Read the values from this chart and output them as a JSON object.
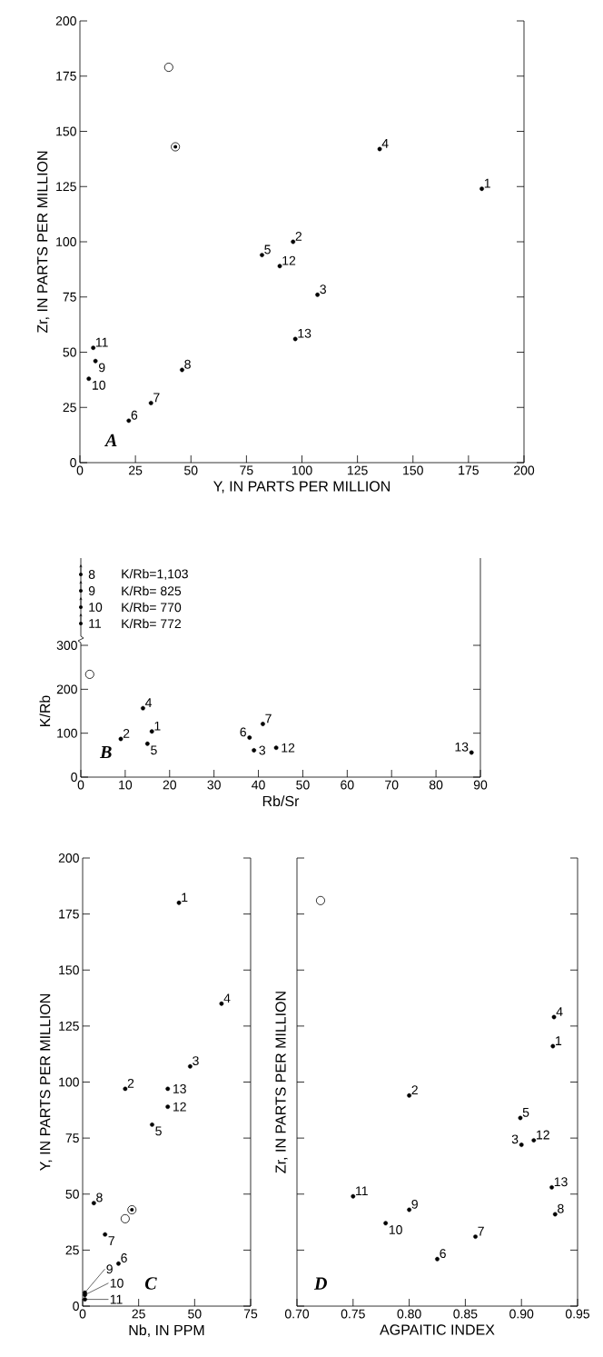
{
  "chart_data": [
    {
      "type": "scatter",
      "xlabel": "Y, IN PARTS PER MILLION",
      "ylabel": "Zr, IN PARTS PER MILLION",
      "xlim": [
        0,
        200
      ],
      "ylim": [
        0,
        200
      ],
      "xticks": [
        0,
        25,
        50,
        75,
        100,
        125,
        150,
        175,
        200
      ],
      "yticks": [
        0,
        25,
        50,
        75,
        100,
        125,
        150,
        175,
        200
      ],
      "series": [
        {
          "color": "#000000",
          "marker": "circle",
          "x": [
            181,
            96,
            107,
            135,
            82,
            22,
            32,
            46,
            7,
            4,
            6,
            90,
            97
          ],
          "values": [
            124,
            100,
            76,
            142,
            94,
            19,
            27,
            42,
            46,
            38,
            52,
            89,
            56
          ]
        },
        {
          "color": "#ffffff",
          "marker": "circle",
          "x": [
            40
          ],
          "values": [
            179
          ]
        },
        {
          "color": "#000000",
          "marker": "circle",
          "x": [
            43
          ],
          "values": [
            143
          ]
        }
      ],
      "annotations": [
        "A",
        {
          "text": "1",
          "x": 181,
          "y": 124
        },
        {
          "text": "2",
          "x": 96,
          "y": 100
        },
        {
          "text": "3",
          "x": 107,
          "y": 76
        },
        {
          "text": "4",
          "x": 135,
          "y": 142
        },
        {
          "text": "5",
          "x": 82,
          "y": 94
        },
        {
          "text": "6",
          "x": 22,
          "y": 19
        },
        {
          "text": "7",
          "x": 32,
          "y": 27
        },
        {
          "text": "8",
          "x": 46,
          "y": 42
        },
        {
          "text": "9",
          "x": 7,
          "y": 46
        },
        {
          "text": "10",
          "x": 4,
          "y": 38
        },
        {
          "text": "11",
          "x": 6,
          "y": 52
        },
        {
          "text": "12",
          "x": 90,
          "y": 89
        },
        {
          "text": "13",
          "x": 97,
          "y": 56
        }
      ]
    },
    {
      "type": "scatter",
      "xlabel": "Rb/Sr",
      "ylabel": "K/Rb",
      "xlim": [
        0,
        90
      ],
      "ylim": [
        0,
        300
      ],
      "xticks": [
        0,
        10,
        20,
        30,
        40,
        50,
        60,
        70,
        80,
        90
      ],
      "yticks": [
        0,
        100,
        200,
        300
      ],
      "series": [
        {
          "color": "#000000",
          "marker": "circle",
          "x": [
            16,
            9,
            39,
            14,
            15,
            38,
            41,
            44,
            88
          ],
          "values": [
            104,
            87,
            61,
            157,
            76,
            90,
            121,
            67,
            56
          ]
        },
        {
          "color": "#ffffff",
          "marker": "circle",
          "x": [
            2
          ],
          "values": [
            234
          ]
        }
      ],
      "annotations": [
        "B",
        {
          "text": "1",
          "x": 16,
          "y": 104
        },
        {
          "text": "2",
          "x": 9,
          "y": 87
        },
        {
          "text": "3",
          "x": 39,
          "y": 61
        },
        {
          "text": "4",
          "x": 14,
          "y": 157
        },
        {
          "text": "5",
          "x": 15,
          "y": 76
        },
        {
          "text": "6",
          "x": 38,
          "y": 90
        },
        {
          "text": "7",
          "x": 41,
          "y": 121
        },
        {
          "text": "12",
          "x": 44,
          "y": 67
        },
        {
          "text": "13",
          "x": 88,
          "y": 56
        },
        "8",
        "K/Rb=1,103",
        "9",
        "K/Rb= 825",
        "10",
        "K/Rb= 770",
        "11",
        "K/Rb= 772"
      ]
    },
    {
      "type": "scatter",
      "xlabel": "Nb, IN PPM",
      "ylabel": "Y, IN PARTS PER MILLION",
      "xlim": [
        0,
        75
      ],
      "ylim": [
        0,
        200
      ],
      "xticks": [
        0,
        25,
        50,
        75
      ],
      "yticks": [
        0,
        25,
        50,
        75,
        100,
        125,
        150,
        175,
        200
      ],
      "series": [
        {
          "color": "#000000",
          "marker": "circle",
          "x": [
            43,
            19,
            48,
            62,
            31,
            16,
            10,
            5,
            1,
            1,
            1,
            38,
            38
          ],
          "values": [
            180,
            97,
            107,
            135,
            81,
            19,
            32,
            46,
            6,
            5,
            3,
            89,
            97
          ]
        },
        {
          "color": "#ffffff",
          "marker": "circle",
          "x": [
            19
          ],
          "values": [
            39
          ]
        },
        {
          "color": "#000000",
          "marker": "circle",
          "x": [
            22
          ],
          "values": [
            43
          ]
        }
      ],
      "annotations": [
        "C",
        {
          "text": "1",
          "x": 43,
          "y": 180
        },
        {
          "text": "2",
          "x": 19,
          "y": 97
        },
        {
          "text": "3",
          "x": 48,
          "y": 107
        },
        {
          "text": "4",
          "x": 62,
          "y": 135
        },
        {
          "text": "5",
          "x": 31,
          "y": 81
        },
        {
          "text": "6",
          "x": 16,
          "y": 19
        },
        {
          "text": "7",
          "x": 10,
          "y": 32
        },
        {
          "text": "8",
          "x": 5,
          "y": 46
        },
        {
          "text": "9",
          "x": 1,
          "y": 6
        },
        {
          "text": "10",
          "x": 1,
          "y": 5
        },
        {
          "text": "11",
          "x": 1,
          "y": 3
        },
        {
          "text": "12",
          "x": 38,
          "y": 89
        },
        {
          "text": "13",
          "x": 38,
          "y": 97
        }
      ]
    },
    {
      "type": "scatter",
      "xlabel": "AGPAITIC INDEX",
      "ylabel": "Zr, IN PARTS PER MILLION",
      "xlim": [
        0.7,
        0.95
      ],
      "ylim": [
        0,
        200
      ],
      "tick_labels": "x",
      "xticks": [
        {
          "value": 0.7,
          "label": "0.70"
        },
        0.75,
        {
          "value": 0.8,
          "label": "0.80"
        },
        0.85,
        {
          "value": 0.9,
          "label": "0.90"
        },
        0.95
      ],
      "yticks": [
        {
          "value": 0,
          "label": null
        },
        {
          "value": 25,
          "label": null
        },
        {
          "value": 50,
          "label": null
        },
        {
          "value": 75,
          "label": null
        },
        {
          "value": 100,
          "label": null
        },
        {
          "value": 125,
          "label": null
        },
        {
          "value": 150,
          "label": null
        },
        {
          "value": 175,
          "label": null
        },
        {
          "value": 200,
          "label": null
        }
      ],
      "series": [
        {
          "color": "#000000",
          "marker": "circle",
          "x": [
            0.928,
            0.8,
            0.9,
            0.929,
            0.899,
            0.825,
            0.859,
            0.93,
            0.8,
            0.779,
            0.75,
            0.911,
            0.927
          ],
          "values": [
            116,
            94,
            72,
            129,
            84,
            21,
            31,
            41,
            43,
            37,
            49,
            74,
            53
          ]
        },
        {
          "color": "#ffffff",
          "marker": "circle",
          "x": [
            0.721
          ],
          "values": [
            181
          ]
        }
      ],
      "annotations": [
        "D",
        {
          "text": "1",
          "x": 0.928,
          "y": 116
        },
        {
          "text": "2",
          "x": 0.8,
          "y": 94
        },
        {
          "text": "3",
          "x": 0.9,
          "y": 72
        },
        {
          "text": "4",
          "x": 0.929,
          "y": 129
        },
        {
          "text": "5",
          "x": 0.899,
          "y": 84
        },
        {
          "text": "6",
          "x": 0.825,
          "y": 21
        },
        {
          "text": "7",
          "x": 0.859,
          "y": 31
        },
        {
          "text": "8",
          "x": 0.93,
          "y": 41
        },
        {
          "text": "9",
          "x": 0.8,
          "y": 43
        },
        {
          "text": "10",
          "x": 0.779,
          "y": 37
        },
        {
          "text": "11",
          "x": 0.75,
          "y": 49
        },
        {
          "text": "12",
          "x": 0.911,
          "y": 74
        },
        {
          "text": "13",
          "x": 0.927,
          "y": 53
        }
      ]
    }
  ]
}
